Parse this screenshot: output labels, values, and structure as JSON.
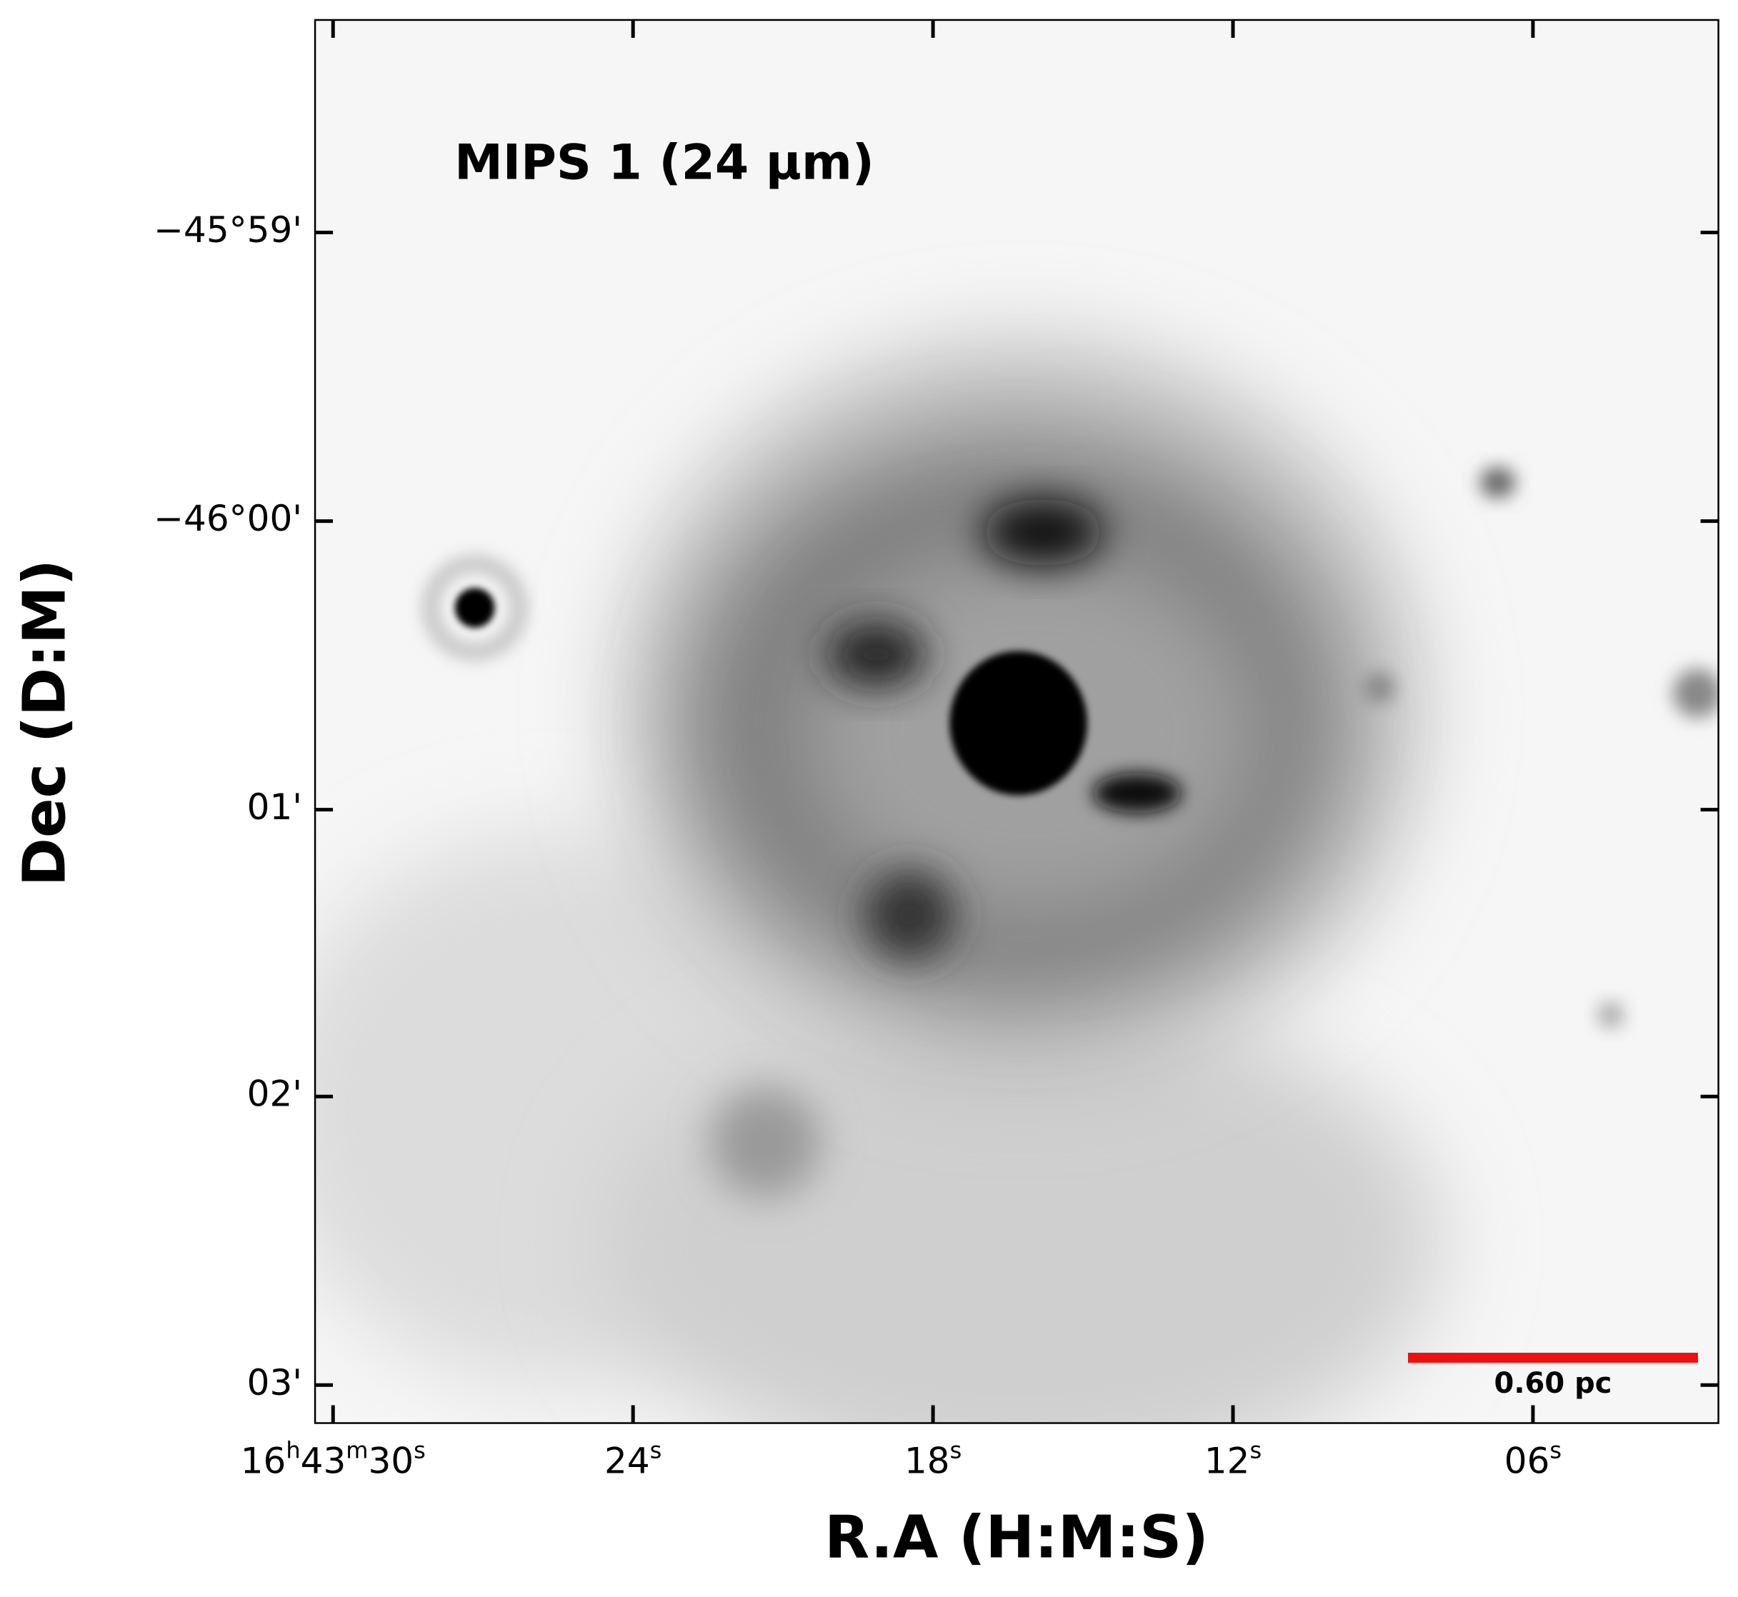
{
  "chart_data": {
    "type": "image",
    "title": "MIPS 1 (24 μm)",
    "xlabel": "R.A (H:M:S)",
    "ylabel": "Dec (D:M)",
    "annotation": "0.60 pc",
    "xlim": [
      30.36,
      2.29
    ],
    "xticks": [
      {
        "value": 30,
        "label": "16h43m30s"
      },
      {
        "value": 24,
        "label": "24s"
      },
      {
        "value": 18,
        "label": "18s"
      },
      {
        "value": 12,
        "label": "12s"
      },
      {
        "value": 6,
        "label": "06s"
      }
    ],
    "ylim": [
      -46.0522,
      -45.971
    ],
    "yticks": [
      {
        "value": -45.9833,
        "label": "−45°59'"
      },
      {
        "value": -46.0,
        "label": "−46°00'"
      },
      {
        "value": -46.0167,
        "label": "01'"
      },
      {
        "value": -46.0333,
        "label": "02'"
      },
      {
        "value": -46.05,
        "label": "03'"
      }
    ],
    "title_color": "#0a0ae6",
    "annotation_color": "#ee1111"
  }
}
